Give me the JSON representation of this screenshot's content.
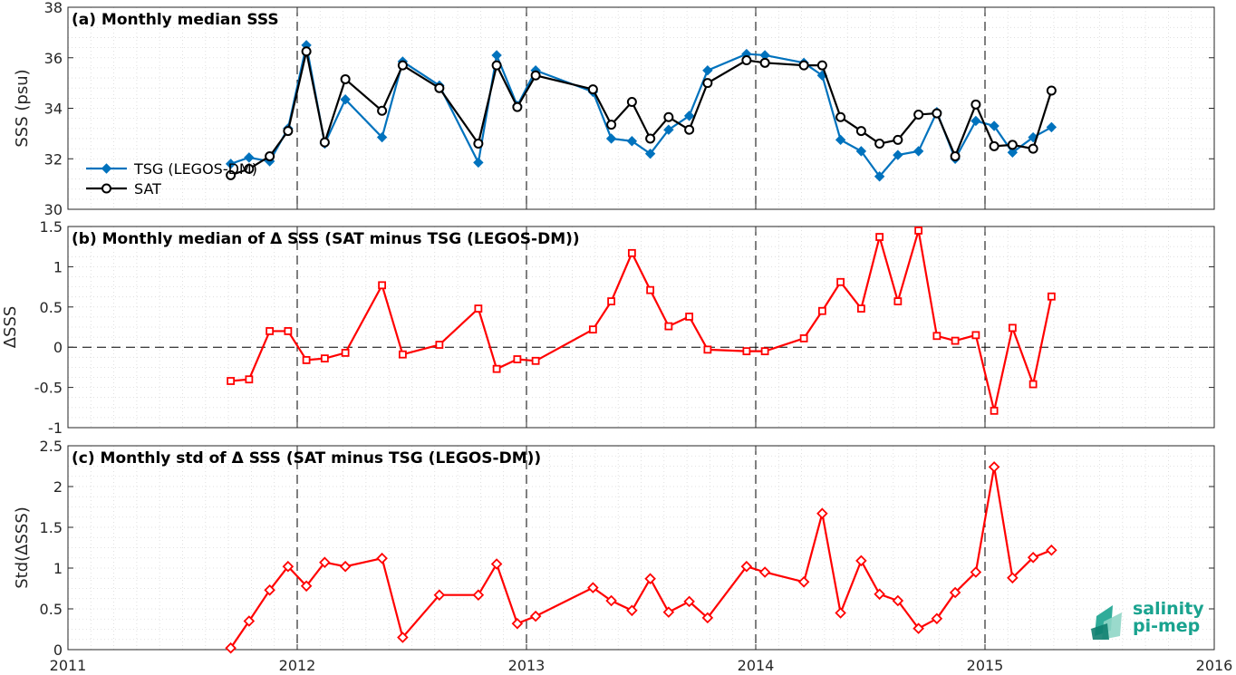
{
  "chart_data": [
    {
      "type": "line",
      "title": "(a) Monthly median SSS",
      "xlabel": "",
      "ylabel": "SSS (psu)",
      "xlim": [
        2011,
        2016
      ],
      "ylim": [
        30,
        38
      ],
      "yticks": [
        30,
        32,
        34,
        36,
        38
      ],
      "legend_position": "lower-left",
      "series": [
        {
          "name": "TSG (LEGOS-DM)",
          "color": "#0072bd",
          "marker": "diamond",
          "x": [
            2011.71,
            2011.79,
            2011.88,
            2011.96,
            2012.04,
            2012.12,
            2012.21,
            2012.37,
            2012.46,
            2012.62,
            2012.79,
            2012.87,
            2012.96,
            2013.04,
            2013.29,
            2013.37,
            2013.46,
            2013.54,
            2013.62,
            2013.71,
            2013.79,
            2013.96,
            2014.04,
            2014.21,
            2014.29,
            2014.37,
            2014.46,
            2014.54,
            2014.62,
            2014.71,
            2014.79,
            2014.87,
            2014.96,
            2015.04,
            2015.12,
            2015.21,
            2015.29
          ],
          "y": [
            31.8,
            32.05,
            31.9,
            33.2,
            36.5,
            32.6,
            34.35,
            32.85,
            35.85,
            34.9,
            31.85,
            36.1,
            34.1,
            35.5,
            34.65,
            32.8,
            32.7,
            32.2,
            33.15,
            33.7,
            35.5,
            36.15,
            36.1,
            35.8,
            35.3,
            32.75,
            32.3,
            31.3,
            32.15,
            32.3,
            33.85,
            32.0,
            33.5,
            33.3,
            32.25,
            32.85,
            33.25
          ]
        },
        {
          "name": "SAT",
          "color": "#000000",
          "marker": "circle",
          "x": [
            2011.71,
            2011.79,
            2011.88,
            2011.96,
            2012.04,
            2012.12,
            2012.21,
            2012.37,
            2012.46,
            2012.62,
            2012.79,
            2012.87,
            2012.96,
            2013.04,
            2013.29,
            2013.37,
            2013.46,
            2013.54,
            2013.62,
            2013.71,
            2013.79,
            2013.96,
            2014.04,
            2014.21,
            2014.29,
            2014.37,
            2014.46,
            2014.54,
            2014.62,
            2014.71,
            2014.79,
            2014.87,
            2014.96,
            2015.04,
            2015.12,
            2015.21,
            2015.29
          ],
          "y": [
            31.35,
            31.6,
            32.1,
            33.1,
            36.25,
            32.65,
            35.15,
            33.9,
            35.7,
            34.8,
            32.6,
            35.7,
            34.05,
            35.3,
            34.75,
            33.35,
            34.25,
            32.8,
            33.65,
            33.15,
            35.0,
            35.9,
            35.8,
            35.7,
            35.7,
            33.65,
            33.1,
            32.6,
            32.75,
            33.75,
            33.8,
            32.1,
            34.15,
            32.5,
            32.55,
            32.4,
            34.7
          ]
        }
      ]
    },
    {
      "type": "line",
      "title": "(b) Monthly median of Δ SSS (SAT minus TSG (LEGOS-DM))",
      "xlabel": "",
      "ylabel": "ΔSSS",
      "xlim": [
        2011,
        2016
      ],
      "ylim": [
        -1,
        1.5
      ],
      "yticks": [
        -1,
        -0.5,
        0,
        0.5,
        1,
        1.5
      ],
      "zero_line": true,
      "series": [
        {
          "color": "#ff0000",
          "marker": "square",
          "x": [
            2011.71,
            2011.79,
            2011.88,
            2011.96,
            2012.04,
            2012.12,
            2012.21,
            2012.37,
            2012.46,
            2012.62,
            2012.79,
            2012.87,
            2012.96,
            2013.04,
            2013.29,
            2013.37,
            2013.46,
            2013.54,
            2013.62,
            2013.71,
            2013.79,
            2013.96,
            2014.04,
            2014.21,
            2014.29,
            2014.37,
            2014.46,
            2014.54,
            2014.62,
            2014.71,
            2014.79,
            2014.87,
            2014.96,
            2015.04,
            2015.12,
            2015.21,
            2015.29
          ],
          "y": [
            -0.42,
            -0.4,
            0.2,
            0.2,
            -0.16,
            -0.14,
            -0.07,
            0.77,
            -0.09,
            0.03,
            0.48,
            -0.27,
            -0.15,
            -0.17,
            0.22,
            0.57,
            1.17,
            0.71,
            0.26,
            0.38,
            -0.03,
            -0.05,
            -0.05,
            0.11,
            0.45,
            0.81,
            0.48,
            1.37,
            0.57,
            1.45,
            0.14,
            0.08,
            0.15,
            -0.79,
            0.24,
            -0.46,
            0.63
          ]
        }
      ]
    },
    {
      "type": "line",
      "title": "(c) Monthly std of Δ SSS (SAT minus TSG (LEGOS-DM))",
      "xlabel": "",
      "ylabel": "Std(ΔSSS)",
      "xlim": [
        2011,
        2016
      ],
      "ylim": [
        0,
        2.5
      ],
      "yticks": [
        0,
        0.5,
        1,
        1.5,
        2,
        2.5
      ],
      "xticks": [
        2011,
        2012,
        2013,
        2014,
        2015,
        2016
      ],
      "series": [
        {
          "color": "#ff0000",
          "marker": "diamond",
          "x": [
            2011.71,
            2011.79,
            2011.88,
            2011.96,
            2012.04,
            2012.12,
            2012.21,
            2012.37,
            2012.46,
            2012.62,
            2012.79,
            2012.87,
            2012.96,
            2013.04,
            2013.29,
            2013.37,
            2013.46,
            2013.54,
            2013.62,
            2013.71,
            2013.79,
            2013.96,
            2014.04,
            2014.21,
            2014.29,
            2014.37,
            2014.46,
            2014.54,
            2014.62,
            2014.71,
            2014.79,
            2014.87,
            2014.96,
            2015.04,
            2015.12,
            2015.21,
            2015.29
          ],
          "y": [
            0.02,
            0.35,
            0.73,
            1.02,
            0.78,
            1.07,
            1.02,
            1.12,
            0.15,
            0.67,
            0.67,
            1.05,
            0.32,
            0.41,
            0.76,
            0.6,
            0.48,
            0.87,
            0.46,
            0.59,
            0.39,
            1.02,
            0.95,
            0.83,
            1.67,
            0.45,
            1.09,
            0.68,
            0.6,
            0.26,
            0.38,
            0.7,
            0.95,
            2.24,
            0.88,
            1.13,
            1.22
          ]
        }
      ]
    }
  ],
  "logo": {
    "line1": "salinity",
    "line2": "pi-mep",
    "color": "#1aa38f"
  }
}
